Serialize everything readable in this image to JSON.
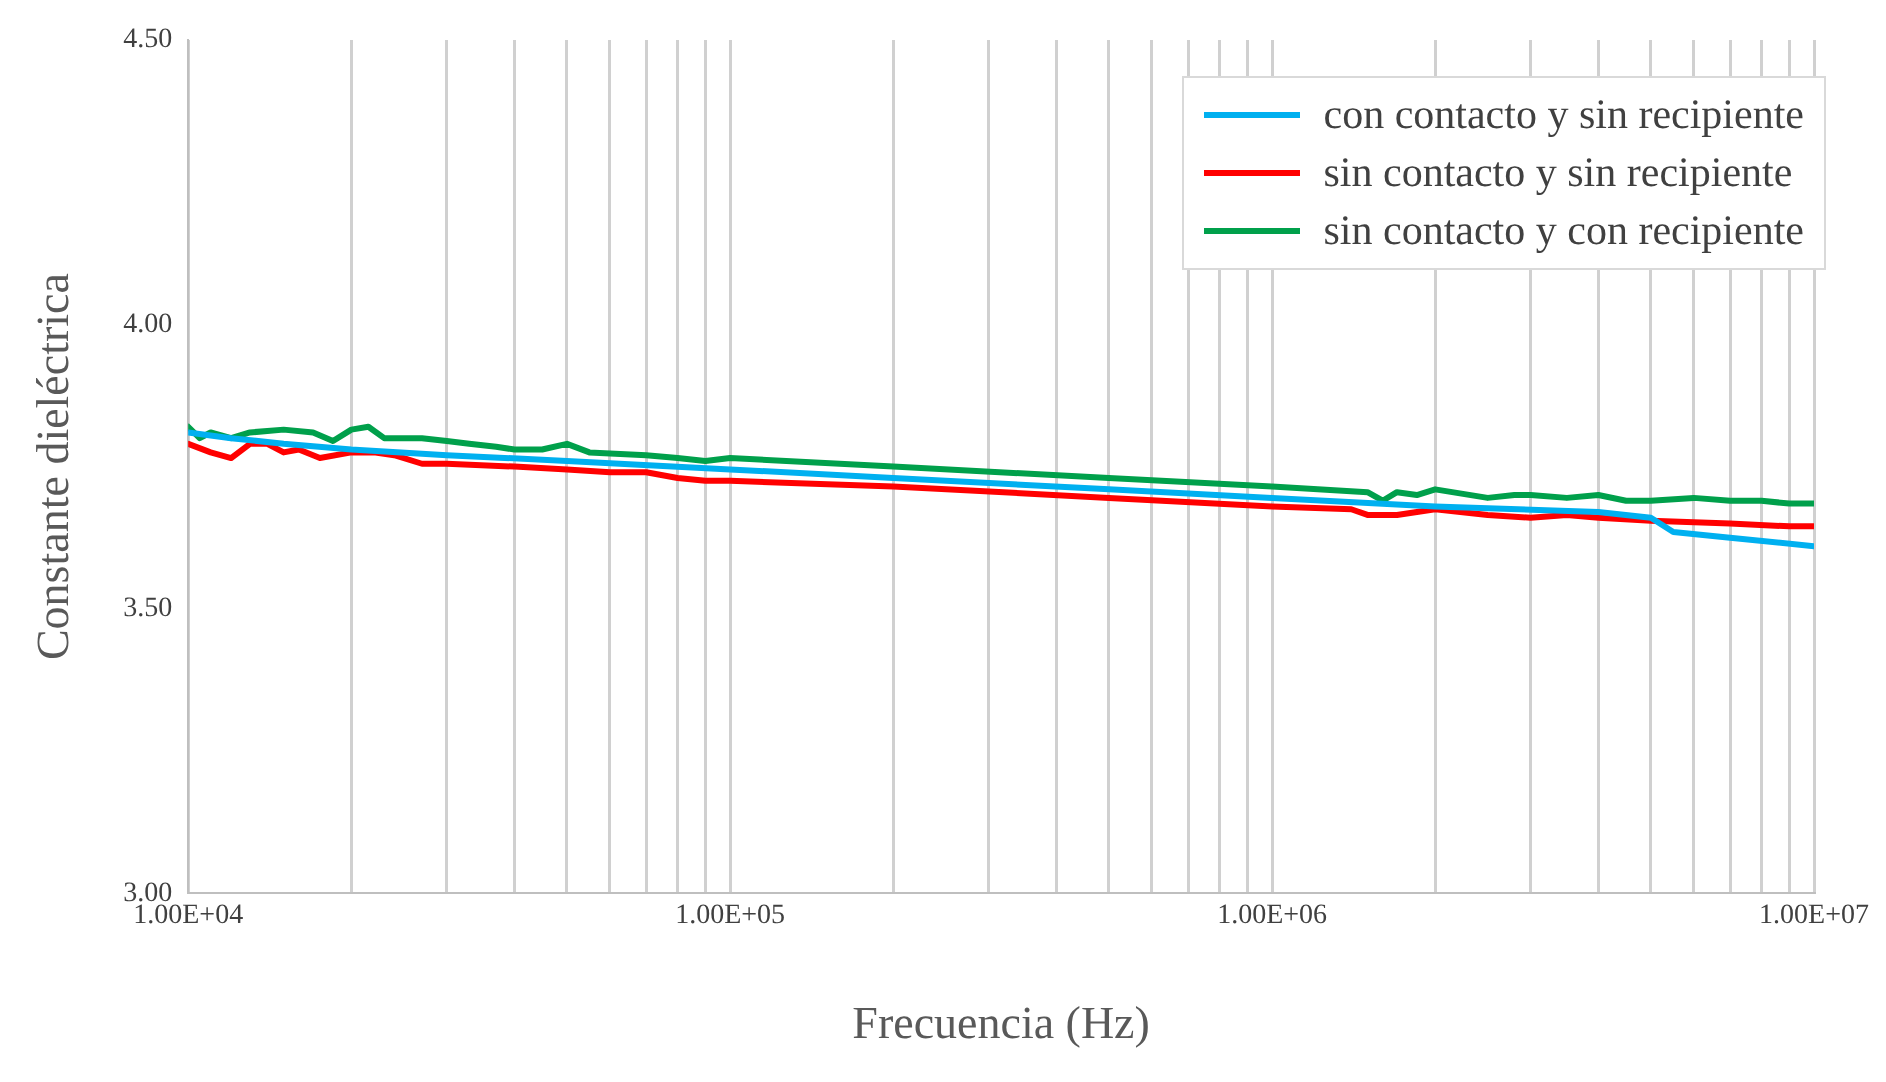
{
  "chart_data": {
    "type": "line",
    "xlabel": "Frecuencia (Hz)",
    "ylabel": "Constante dieléctrica",
    "log": "x",
    "grid": "x",
    "legend": "top right",
    "marker": "none",
    "line_style": "solid",
    "xlim": [
      10000,
      10000000
    ],
    "xticks": [
      {
        "value": 10000,
        "label": "1.00E+04"
      },
      {
        "value": 20000,
        "label": null
      },
      {
        "value": 30000,
        "label": null
      },
      {
        "value": 40000,
        "label": null
      },
      {
        "value": 50000,
        "label": null
      },
      {
        "value": 60000,
        "label": null
      },
      {
        "value": 70000,
        "label": null
      },
      {
        "value": 80000,
        "label": null
      },
      {
        "value": 90000,
        "label": null
      },
      {
        "value": 100000,
        "label": "1.00E+05"
      },
      {
        "value": 200000,
        "label": null
      },
      {
        "value": 300000,
        "label": null
      },
      {
        "value": 400000,
        "label": null
      },
      {
        "value": 500000,
        "label": null
      },
      {
        "value": 600000,
        "label": null
      },
      {
        "value": 700000,
        "label": null
      },
      {
        "value": 800000,
        "label": null
      },
      {
        "value": 900000,
        "label": null
      },
      {
        "value": 1000000,
        "label": "1.00E+06"
      },
      {
        "value": 2000000,
        "label": null
      },
      {
        "value": 3000000,
        "label": null
      },
      {
        "value": 4000000,
        "label": null
      },
      {
        "value": 5000000,
        "label": null
      },
      {
        "value": 6000000,
        "label": null
      },
      {
        "value": 7000000,
        "label": null
      },
      {
        "value": 8000000,
        "label": null
      },
      {
        "value": 9000000,
        "label": null
      },
      {
        "value": 10000000,
        "label": "1.00E+07"
      }
    ],
    "ylim": [
      3,
      4.5
    ],
    "yticks": [
      {
        "value": 3,
        "label": "3.00"
      },
      {
        "value": 3.5,
        "label": "3.50"
      },
      {
        "value": 4,
        "label": "4.00"
      },
      {
        "value": 4.5,
        "label": "4.50"
      }
    ],
    "series": [
      {
        "name": "con contacto y sin recipiente",
        "color": "#00b0f0",
        "x": [
          10000,
          12000,
          15000,
          20000,
          30000,
          50000,
          100000,
          200000,
          500000,
          1000000,
          2000000,
          4000000,
          5000000,
          5500000,
          7000000,
          10000000
        ],
        "values": [
          3.81,
          3.8,
          3.79,
          3.78,
          3.77,
          3.76,
          3.745,
          3.73,
          3.71,
          3.695,
          3.68,
          3.67,
          3.66,
          3.635,
          3.625,
          3.61
        ]
      },
      {
        "name": "sin contacto y sin recipiente",
        "color": "#ff0000",
        "x": [
          10000,
          11000,
          12000,
          13000,
          14000,
          15000,
          16000,
          17500,
          20000,
          22000,
          24000,
          27000,
          30000,
          40000,
          50000,
          60000,
          70000,
          80000,
          90000,
          100000,
          200000,
          500000,
          1000000,
          1400000,
          1500000,
          1700000,
          2000000,
          2500000,
          3000000,
          3500000,
          4000000,
          5000000,
          7000000,
          9000000,
          10000000
        ],
        "values": [
          3.79,
          3.775,
          3.765,
          3.79,
          3.79,
          3.775,
          3.78,
          3.765,
          3.775,
          3.775,
          3.77,
          3.755,
          3.755,
          3.75,
          3.745,
          3.74,
          3.74,
          3.73,
          3.725,
          3.725,
          3.715,
          3.695,
          3.68,
          3.675,
          3.665,
          3.665,
          3.675,
          3.665,
          3.66,
          3.665,
          3.66,
          3.655,
          3.65,
          3.645,
          3.645
        ]
      },
      {
        "name": "sin contacto y con recipiente",
        "color": "#00a04b",
        "x": [
          10000,
          10500,
          11000,
          12000,
          13000,
          15000,
          17000,
          18500,
          20000,
          21500,
          23000,
          27000,
          30000,
          33000,
          37000,
          40000,
          45000,
          50000,
          55000,
          70000,
          80000,
          90000,
          100000,
          200000,
          500000,
          1000000,
          1500000,
          1600000,
          1700000,
          1850000,
          2000000,
          2500000,
          2800000,
          3000000,
          3500000,
          4000000,
          4500000,
          5000000,
          6000000,
          7000000,
          8000000,
          9000000,
          10000000
        ],
        "values": [
          3.82,
          3.8,
          3.81,
          3.8,
          3.81,
          3.815,
          3.81,
          3.795,
          3.815,
          3.82,
          3.8,
          3.8,
          3.795,
          3.79,
          3.785,
          3.78,
          3.78,
          3.79,
          3.775,
          3.77,
          3.765,
          3.76,
          3.765,
          3.75,
          3.73,
          3.715,
          3.705,
          3.69,
          3.705,
          3.7,
          3.71,
          3.695,
          3.7,
          3.7,
          3.695,
          3.7,
          3.69,
          3.69,
          3.695,
          3.69,
          3.69,
          3.685,
          3.685
        ]
      }
    ]
  }
}
